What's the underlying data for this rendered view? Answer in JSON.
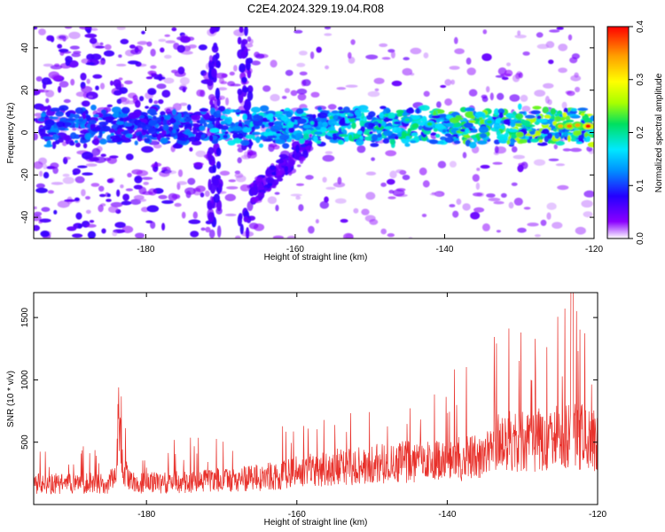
{
  "title": "C2E4.2024.329.19.04.R08",
  "colors": {
    "line": "#e8302a",
    "frame": "#000000"
  },
  "chart_data": [
    {
      "type": "heatmap",
      "xlabel": "Height of straight line (km)",
      "ylabel": "Frequency (Hz)",
      "xlim": [
        -195,
        -120
      ],
      "ylim": [
        -50,
        50
      ],
      "xticks": [
        -180,
        -160,
        -140,
        -120
      ],
      "yticks": [
        -40,
        -20,
        0,
        20,
        40
      ],
      "colorbar": {
        "label": "Normalized spectral amplitude",
        "range": [
          0,
          0.4
        ],
        "ticks": [
          0,
          0.1,
          0.2,
          0.3,
          0.4
        ],
        "tick_labels": [
          "0.0",
          "0.1",
          "0.2",
          "0.3",
          "0.4"
        ],
        "colormap": [
          "#ffffff",
          "#8a00ff",
          "#2400ff",
          "#0090ff",
          "#00e8ff",
          "#00e060",
          "#a8ff00",
          "#ffff00",
          "#ffa000",
          "#ff0000"
        ]
      },
      "band": {
        "center_hz": 3,
        "half_width_hz": 8,
        "start_km": -171
      }
    },
    {
      "type": "line",
      "xlabel": "Height of straight line (km)",
      "ylabel": "SNR (10 * v/v)",
      "xlim": [
        -195,
        -120
      ],
      "ylim": [
        0,
        1700
      ],
      "xticks": [
        -180,
        -160,
        -140,
        -120
      ],
      "yticks": [
        500,
        1000,
        1500
      ],
      "trend": [
        {
          "x": -195,
          "y": 190
        },
        {
          "x": -185,
          "y": 190
        },
        {
          "x": -184,
          "y": 320
        },
        {
          "x": -183.6,
          "y": 900
        },
        {
          "x": -183.2,
          "y": 350
        },
        {
          "x": -182,
          "y": 190
        },
        {
          "x": -175,
          "y": 200
        },
        {
          "x": -165,
          "y": 240
        },
        {
          "x": -160,
          "y": 290
        },
        {
          "x": -155,
          "y": 330
        },
        {
          "x": -150,
          "y": 360
        },
        {
          "x": -145,
          "y": 380
        },
        {
          "x": -140,
          "y": 400
        },
        {
          "x": -135,
          "y": 430
        },
        {
          "x": -133,
          "y": 560
        },
        {
          "x": -130,
          "y": 560
        },
        {
          "x": -126,
          "y": 580
        },
        {
          "x": -124,
          "y": 620
        },
        {
          "x": -122,
          "y": 600
        },
        {
          "x": -120,
          "y": 560
        }
      ]
    }
  ]
}
